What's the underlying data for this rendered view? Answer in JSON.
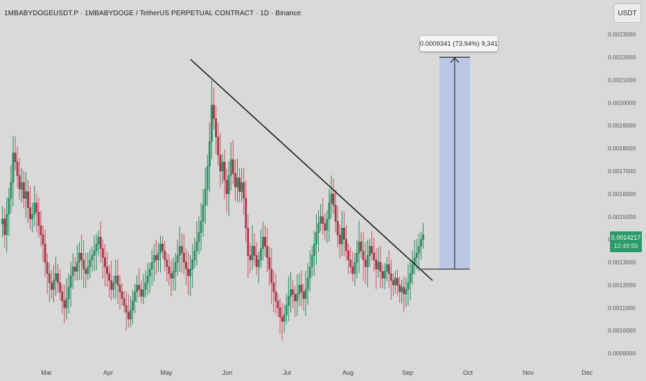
{
  "header": {
    "title": "1MBABYDOGEUSDT.P · 1MBABYDOGE / TetherUS PERPETUAL CONTRACT · 1D · Binance"
  },
  "currency_button": {
    "label": "USDT"
  },
  "measure_tool": {
    "label": "0.0009341 (73.94%) 9,341"
  },
  "last_price": {
    "value": "0.0014217",
    "countdown": "12:49:55"
  },
  "colors": {
    "background": "#d9d9d9",
    "up": "#2b9a6a",
    "down": "#b5364a",
    "wick_up": "#1e8a5b",
    "wick_down": "#d04a5c",
    "trendline": "#111111",
    "projection_fill": "#b4c3e6"
  },
  "chart_data": {
    "type": "candlestick",
    "interval": "1D",
    "y_axis": {
      "ticks": [
        "0.0023000",
        "0.0022000",
        "0.0021000",
        "0.0020000",
        "0.0019000",
        "0.0018000",
        "0.0017000",
        "0.0016000",
        "0.0015000",
        "0.0014000",
        "0.0013000",
        "0.0012000",
        "0.0011000",
        "0.0010000",
        "0.0009000"
      ],
      "range": [
        0.00087,
        0.00239
      ]
    },
    "x_axis": {
      "ticks": [
        "Mar",
        "Apr",
        "May",
        "Jun",
        "Jul",
        "Aug",
        "Sep",
        "Oct",
        "Nov",
        "Dec"
      ]
    },
    "trendline": {
      "from_close": 0.00219,
      "to_close": 0.00122,
      "note": "descending resistance from May high to September"
    },
    "projection": {
      "low": 0.00127,
      "high": 0.0022
    },
    "closes": [
      0.00149,
      0.00142,
      0.00151,
      0.00158,
      0.00165,
      0.00178,
      0.00174,
      0.00168,
      0.00162,
      0.00165,
      0.00158,
      0.00161,
      0.00154,
      0.00149,
      0.00151,
      0.00156,
      0.00152,
      0.00146,
      0.00142,
      0.00138,
      0.0013,
      0.00125,
      0.00121,
      0.00118,
      0.00122,
      0.00125,
      0.00121,
      0.00117,
      0.00113,
      0.0011,
      0.00114,
      0.00119,
      0.00124,
      0.00128,
      0.00126,
      0.0013,
      0.00134,
      0.00131,
      0.00127,
      0.00125,
      0.00128,
      0.00131,
      0.00133,
      0.00135,
      0.00138,
      0.00141,
      0.00136,
      0.00132,
      0.00128,
      0.00125,
      0.00122,
      0.00118,
      0.00121,
      0.00124,
      0.0012,
      0.00117,
      0.00114,
      0.00111,
      0.00108,
      0.00105,
      0.00109,
      0.00113,
      0.00117,
      0.0012,
      0.00118,
      0.00115,
      0.00118,
      0.00121,
      0.00124,
      0.00127,
      0.0013,
      0.00133,
      0.00131,
      0.00134,
      0.00138,
      0.00135,
      0.00131,
      0.00128,
      0.00125,
      0.00123,
      0.00126,
      0.0013,
      0.00133,
      0.00137,
      0.00134,
      0.0013,
      0.00127,
      0.00124,
      0.00127,
      0.00131,
      0.00135,
      0.00139,
      0.00143,
      0.00148,
      0.00155,
      0.00162,
      0.00172,
      0.00183,
      0.00199,
      0.00193,
      0.00185,
      0.00177,
      0.0017,
      0.00174,
      0.00166,
      0.0016,
      0.00168,
      0.00175,
      0.00169,
      0.00163,
      0.00167,
      0.00161,
      0.00165,
      0.00158,
      0.00145,
      0.00133,
      0.00131,
      0.00137,
      0.00133,
      0.00128,
      0.00131,
      0.00136,
      0.00141,
      0.00137,
      0.00132,
      0.00127,
      0.00121,
      0.00117,
      0.00113,
      0.0011,
      0.00106,
      0.00104,
      0.00107,
      0.00111,
      0.00115,
      0.00118,
      0.00116,
      0.00113,
      0.00116,
      0.0012,
      0.00117,
      0.00114,
      0.00118,
      0.00123,
      0.00128,
      0.00133,
      0.00138,
      0.00143,
      0.00147,
      0.0015,
      0.00147,
      0.00144,
      0.00149,
      0.00156,
      0.0016,
      0.00155,
      0.00148,
      0.00142,
      0.00138,
      0.00145,
      0.0014,
      0.00135,
      0.00131,
      0.00128,
      0.00125,
      0.0013,
      0.00134,
      0.00139,
      0.00135,
      0.00131,
      0.00128,
      0.00133,
      0.00137,
      0.00134,
      0.00131,
      0.00127,
      0.0013,
      0.00126,
      0.00123,
      0.00126,
      0.00129,
      0.00125,
      0.00122,
      0.0012,
      0.00123,
      0.0012,
      0.00117,
      0.00119,
      0.00116,
      0.00118,
      0.00121,
      0.00125,
      0.00129,
      0.00132,
      0.00134,
      0.00137,
      0.0014,
      0.00142
    ]
  }
}
